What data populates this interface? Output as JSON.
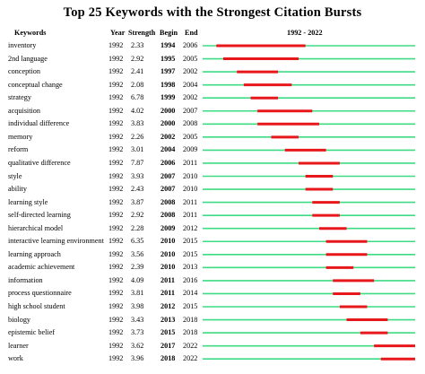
{
  "title": "Top 25 Keywords with the Strongest Citation Bursts",
  "headers": {
    "keywords": "Keywords",
    "year": "Year",
    "strength": "Strength",
    "begin": "Begin",
    "end": "End",
    "range": "1992 - 2022"
  },
  "colors": {
    "baseline": "#3ddc84",
    "burst": "#e8171b",
    "text": "#000000"
  },
  "chart_data": {
    "type": "table",
    "title": "Top 25 Keywords with the Strongest Citation Bursts",
    "timeline_range": [
      1992,
      2022
    ],
    "columns": [
      "Keywords",
      "Year",
      "Strength",
      "Begin",
      "End",
      "1992 - 2022"
    ],
    "rows": [
      {
        "keyword": "inventory",
        "year": 1992,
        "strength": "2.33",
        "begin": 1994,
        "end": 2006
      },
      {
        "keyword": "2nd language",
        "year": 1992,
        "strength": "2.92",
        "begin": 1995,
        "end": 2005
      },
      {
        "keyword": "conception",
        "year": 1992,
        "strength": "2.41",
        "begin": 1997,
        "end": 2002
      },
      {
        "keyword": "conceptual change",
        "year": 1992,
        "strength": "2.08",
        "begin": 1998,
        "end": 2004
      },
      {
        "keyword": "strategy",
        "year": 1992,
        "strength": "6.78",
        "begin": 1999,
        "end": 2002
      },
      {
        "keyword": "acquisition",
        "year": 1992,
        "strength": "4.02",
        "begin": 2000,
        "end": 2007
      },
      {
        "keyword": "individual difference",
        "year": 1992,
        "strength": "3.83",
        "begin": 2000,
        "end": 2008
      },
      {
        "keyword": "memory",
        "year": 1992,
        "strength": "2.26",
        "begin": 2002,
        "end": 2005
      },
      {
        "keyword": "reform",
        "year": 1992,
        "strength": "3.01",
        "begin": 2004,
        "end": 2009
      },
      {
        "keyword": "qualitative difference",
        "year": 1992,
        "strength": "7.87",
        "begin": 2006,
        "end": 2011
      },
      {
        "keyword": "style",
        "year": 1992,
        "strength": "3.93",
        "begin": 2007,
        "end": 2010
      },
      {
        "keyword": "ability",
        "year": 1992,
        "strength": "2.43",
        "begin": 2007,
        "end": 2010
      },
      {
        "keyword": "learning style",
        "year": 1992,
        "strength": "3.87",
        "begin": 2008,
        "end": 2011
      },
      {
        "keyword": "self-directed learning",
        "year": 1992,
        "strength": "2.92",
        "begin": 2008,
        "end": 2011
      },
      {
        "keyword": "hierarchical model",
        "year": 1992,
        "strength": "2.28",
        "begin": 2009,
        "end": 2012
      },
      {
        "keyword": "interactive learning environment",
        "year": 1992,
        "strength": "6.35",
        "begin": 2010,
        "end": 2015
      },
      {
        "keyword": "learning approach",
        "year": 1992,
        "strength": "3.56",
        "begin": 2010,
        "end": 2015
      },
      {
        "keyword": "academic achievement",
        "year": 1992,
        "strength": "2.39",
        "begin": 2010,
        "end": 2013
      },
      {
        "keyword": "information",
        "year": 1992,
        "strength": "4.09",
        "begin": 2011,
        "end": 2016
      },
      {
        "keyword": "process questionnaire",
        "year": 1992,
        "strength": "3.81",
        "begin": 2011,
        "end": 2014
      },
      {
        "keyword": "high school student",
        "year": 1992,
        "strength": "3.98",
        "begin": 2012,
        "end": 2015
      },
      {
        "keyword": "biology",
        "year": 1992,
        "strength": "3.43",
        "begin": 2013,
        "end": 2018
      },
      {
        "keyword": "epistemic belief",
        "year": 1992,
        "strength": "3.73",
        "begin": 2015,
        "end": 2018
      },
      {
        "keyword": "learner",
        "year": 1992,
        "strength": "3.62",
        "begin": 2017,
        "end": 2022
      },
      {
        "keyword": "work",
        "year": 1992,
        "strength": "3.96",
        "begin": 2018,
        "end": 2022
      }
    ]
  }
}
